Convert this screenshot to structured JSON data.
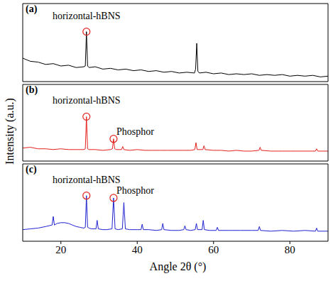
{
  "chart_data": [
    {
      "type": "line",
      "title": "(a)",
      "xlim": [
        10,
        90
      ],
      "xticks": [
        20,
        40,
        60,
        80
      ],
      "ylim": [
        0,
        100
      ],
      "tick_labels": false,
      "annotations": [
        {
          "text": "horizontal-hBNS",
          "x": 26.7
        }
      ],
      "series": [
        {
          "name": "a",
          "color": "#000000",
          "x": [
            10,
            12,
            14,
            16,
            18,
            20,
            22,
            24,
            26,
            26.4,
            26.7,
            27.0,
            27.4,
            29,
            31,
            33,
            35,
            37,
            39,
            41,
            43,
            45,
            47,
            49,
            51,
            53,
            55,
            55.3,
            55.6,
            55.9,
            56.3,
            58,
            60,
            62,
            64,
            66,
            68,
            70,
            72,
            74,
            76,
            78,
            80,
            82,
            84,
            86,
            88,
            90
          ],
          "values": [
            30,
            26,
            25,
            22,
            23,
            20,
            21,
            18,
            19,
            20,
            64,
            20,
            18,
            19,
            16,
            17,
            15,
            16,
            14,
            15,
            13,
            14,
            12,
            13,
            11,
            12,
            11,
            16,
            49,
            13,
            11,
            12,
            10,
            11,
            9,
            10,
            9,
            10,
            8,
            9,
            8,
            9,
            7,
            8,
            7,
            8,
            6,
            7
          ]
        }
      ]
    },
    {
      "type": "line",
      "title": "(b)",
      "ylabel": "Intensity (a.u.)",
      "xlim": [
        10,
        90
      ],
      "xticks": [
        20,
        40,
        60,
        80
      ],
      "ylim": [
        0,
        100
      ],
      "tick_labels": false,
      "annotations": [
        {
          "text": "horizontal-hBNS",
          "x": 26.7
        },
        {
          "text": "Phosphor",
          "x": 33.8
        }
      ],
      "series": [
        {
          "name": "b",
          "color": "#e3211c",
          "x": [
            10,
            12,
            14,
            16,
            18,
            20,
            22,
            24,
            26,
            26.4,
            26.7,
            27.0,
            27.4,
            29,
            31,
            33,
            33.5,
            33.8,
            34.1,
            34.5,
            35.9,
            36.2,
            36.5,
            38,
            40,
            42,
            44,
            46,
            48,
            50,
            52,
            54,
            55.1,
            55.4,
            55.7,
            57.2,
            57.5,
            57.8,
            60,
            62,
            64,
            66,
            68,
            70,
            71.9,
            72.2,
            72.5,
            75,
            78,
            80,
            82,
            84,
            86.7,
            87,
            87.3,
            90
          ],
          "values": [
            17,
            18,
            16,
            16,
            15,
            16,
            15,
            15,
            15,
            16,
            58,
            16,
            15,
            15,
            14,
            15,
            16,
            29,
            16,
            15,
            15,
            19,
            15,
            14,
            15,
            14,
            14,
            14,
            14,
            14,
            14,
            14,
            15,
            24,
            15,
            15,
            20,
            15,
            14,
            14,
            13,
            14,
            13,
            13,
            14,
            18,
            14,
            13,
            13,
            13,
            13,
            13,
            13,
            16,
            13,
            13
          ]
        }
      ]
    },
    {
      "type": "line",
      "title": "(c)",
      "xlabel": "Angle 2θ (°)",
      "xlim": [
        10,
        90
      ],
      "xticks": [
        20,
        40,
        60,
        80
      ],
      "ylim": [
        0,
        100
      ],
      "tick_labels": "x",
      "annotations": [
        {
          "text": "horizontal-hBNS",
          "x": 26.7
        },
        {
          "text": "Phosphor",
          "x": 33.8
        }
      ],
      "series": [
        {
          "name": "c",
          "color": "#1f22d0",
          "x": [
            10,
            12,
            14,
            16,
            17.7,
            18,
            18.3,
            19,
            20,
            21,
            22,
            23,
            24,
            25,
            26,
            26.4,
            26.7,
            27.0,
            27.4,
            28,
            29.2,
            29.5,
            29.8,
            31,
            32,
            33.4,
            33.8,
            34.2,
            35,
            36.1,
            36.5,
            36.9,
            38,
            40,
            41,
            41.3,
            41.6,
            43,
            45,
            46.4,
            46.7,
            47,
            49,
            51,
            52.2,
            52.5,
            52.8,
            54,
            55.2,
            55.5,
            55.8,
            57,
            57.3,
            57.6,
            59,
            60.7,
            61,
            61.3,
            64,
            67,
            70,
            71.7,
            72,
            72.3,
            75,
            78,
            81,
            84,
            86.7,
            87,
            87.3,
            90
          ],
          "values": [
            15,
            16,
            17,
            19,
            21,
            32,
            21,
            23,
            24,
            24,
            23,
            21,
            19,
            18,
            17,
            18,
            59,
            18,
            17,
            16,
            16,
            27,
            16,
            15,
            15,
            16,
            56,
            16,
            15,
            16,
            50,
            16,
            15,
            15,
            15,
            22,
            15,
            15,
            14,
            15,
            23,
            15,
            14,
            14,
            15,
            20,
            15,
            14,
            15,
            23,
            15,
            15,
            27,
            15,
            14,
            14,
            18,
            14,
            14,
            14,
            14,
            14,
            19,
            14,
            13,
            14,
            13,
            14,
            13,
            17,
            13,
            13
          ]
        }
      ]
    }
  ]
}
